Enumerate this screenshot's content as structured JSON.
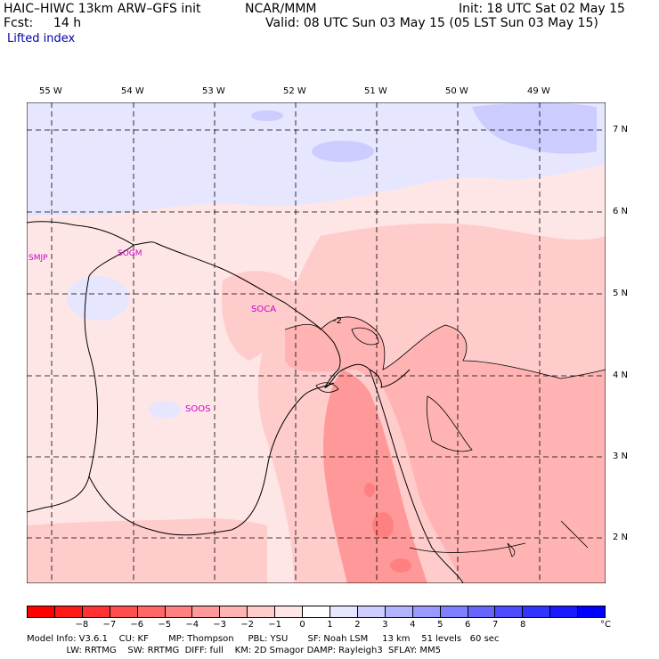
{
  "header": {
    "model": "HAIC–HIWC 13km ARW–GFS init",
    "org": "NCAR/MMM",
    "init": "Init: 18 UTC Sat 02 May 15",
    "fcst_label": "Fcst:",
    "fcst_value": "14 h",
    "valid": "Valid: 08 UTC Sun 03 May 15 (05 LST Sun 03 May 15)",
    "field": "Lifted index"
  },
  "map": {
    "lon_labels": [
      "55 W",
      "54 W",
      "53 W",
      "52 W",
      "51 W",
      "50 W",
      "49 W"
    ],
    "lat_labels": [
      "7 N",
      "6 N",
      "5 N",
      "4 N",
      "3 N",
      "2 N"
    ],
    "stations": [
      {
        "id": "SMJP"
      },
      {
        "id": "SOGM"
      },
      {
        "id": "SOCA"
      },
      {
        "id": "SOOS"
      }
    ],
    "contour_label": "-2"
  },
  "colorbar": {
    "colors": [
      "#ff0000",
      "#ff1a1a",
      "#ff3333",
      "#ff4d4d",
      "#ff6666",
      "#ff8080",
      "#ff9999",
      "#ffb3b3",
      "#ffcccc",
      "#ffe6e6",
      "#ffffff",
      "#e6e6ff",
      "#ccccff",
      "#b3b3ff",
      "#9999ff",
      "#8080ff",
      "#6666ff",
      "#4d4dff",
      "#3333ff",
      "#1a1aff",
      "#0000ff"
    ],
    "labels": [
      "−8",
      "−7",
      "−6",
      "−5",
      "−4",
      "−3",
      "−2",
      "−1",
      "0",
      "1",
      "2",
      "3",
      "4",
      "5",
      "6",
      "7",
      "8"
    ],
    "unit": "°C"
  },
  "footer": {
    "line1": "Model Info: V3.6.1    CU: KF       MP: Thompson     PBL: YSU       SF: Noah LSM     13 km    51 levels   60 sec",
    "line2": "              LW: RRTMG    SW: RRTMG  DIFF: full    KM: 2D Smagor DAMP: Rayleigh3  SFLAY: MM5"
  }
}
